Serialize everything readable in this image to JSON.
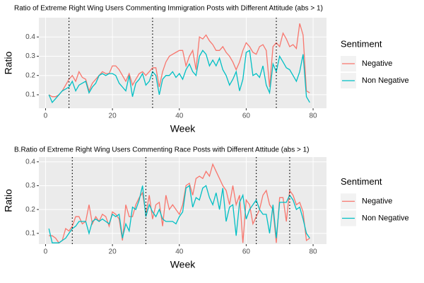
{
  "chart_data": [
    {
      "type": "line",
      "title": "Ratio of Extreme Right Wing Users Commenting Immigration Posts with Different Attitude  (abs > 1)",
      "x_label": "Week",
      "y_label": "Ratio",
      "legend_title": "Sentiment",
      "legend_position": "right",
      "grid": true,
      "xlim": [
        -2,
        84
      ],
      "xticks": [
        0,
        20,
        40,
        60,
        80
      ],
      "ylim": [
        0.03,
        0.5
      ],
      "yticks": [
        0.1,
        0.2,
        0.3,
        0.4
      ],
      "vlines": [
        7,
        32,
        69
      ],
      "x": [
        1,
        2,
        3,
        4,
        5,
        6,
        7,
        8,
        9,
        10,
        11,
        12,
        13,
        14,
        15,
        16,
        17,
        18,
        19,
        20,
        21,
        22,
        23,
        24,
        25,
        26,
        27,
        28,
        29,
        30,
        31,
        32,
        33,
        34,
        35,
        36,
        37,
        38,
        39,
        40,
        41,
        42,
        43,
        44,
        45,
        46,
        47,
        48,
        49,
        50,
        51,
        52,
        53,
        54,
        55,
        56,
        57,
        58,
        59,
        60,
        61,
        62,
        63,
        64,
        65,
        66,
        67,
        68,
        69,
        70,
        71,
        72,
        73,
        74,
        75,
        76,
        77,
        78,
        79
      ],
      "series": [
        {
          "name": "Negative",
          "color": "#F8766D",
          "values": [
            0.1,
            0.09,
            0.09,
            0.1,
            0.12,
            0.15,
            0.18,
            0.2,
            0.17,
            0.22,
            0.19,
            0.18,
            0.12,
            0.16,
            0.18,
            0.2,
            0.22,
            0.21,
            0.21,
            0.25,
            0.25,
            0.23,
            0.2,
            0.17,
            0.21,
            0.15,
            0.18,
            0.21,
            0.22,
            0.2,
            0.22,
            0.24,
            0.24,
            0.14,
            0.22,
            0.27,
            0.3,
            0.31,
            0.32,
            0.33,
            0.33,
            0.25,
            0.3,
            0.33,
            0.23,
            0.4,
            0.39,
            0.41,
            0.38,
            0.36,
            0.33,
            0.33,
            0.35,
            0.32,
            0.3,
            0.27,
            0.23,
            0.27,
            0.33,
            0.37,
            0.35,
            0.32,
            0.31,
            0.35,
            0.36,
            0.33,
            0.14,
            0.35,
            0.37,
            0.35,
            0.42,
            0.39,
            0.35,
            0.36,
            0.34,
            0.47,
            0.41,
            0.12,
            0.11
          ]
        },
        {
          "name": "Non Negative",
          "color": "#00BFC4",
          "values": [
            0.1,
            0.06,
            0.08,
            0.1,
            0.12,
            0.13,
            0.14,
            0.17,
            0.12,
            0.15,
            0.16,
            0.17,
            0.11,
            0.14,
            0.16,
            0.2,
            0.21,
            0.2,
            0.21,
            0.21,
            0.2,
            0.16,
            0.14,
            0.12,
            0.2,
            0.09,
            0.16,
            0.18,
            0.21,
            0.15,
            0.17,
            0.22,
            0.2,
            0.1,
            0.18,
            0.2,
            0.2,
            0.22,
            0.19,
            0.21,
            0.18,
            0.23,
            0.26,
            0.22,
            0.2,
            0.3,
            0.33,
            0.31,
            0.25,
            0.28,
            0.25,
            0.29,
            0.23,
            0.2,
            0.15,
            0.18,
            0.22,
            0.12,
            0.18,
            0.32,
            0.33,
            0.2,
            0.21,
            0.19,
            0.25,
            0.15,
            0.11,
            0.26,
            0.22,
            0.3,
            0.27,
            0.24,
            0.23,
            0.2,
            0.17,
            0.22,
            0.31,
            0.09,
            0.06
          ]
        }
      ]
    },
    {
      "type": "line",
      "title": "B.Ratio of Extreme Right Wing Users Commenting Race Posts with Different Attitude (abs > 1)",
      "x_label": "Week",
      "y_label": "Ratio",
      "legend_title": "Sentiment",
      "legend_position": "right",
      "grid": true,
      "xlim": [
        -2,
        84
      ],
      "xticks": [
        0,
        20,
        40,
        60,
        80
      ],
      "ylim": [
        0.055,
        0.42
      ],
      "yticks": [
        0.1,
        0.2,
        0.3,
        0.4
      ],
      "vlines": [
        8,
        30,
        63,
        73
      ],
      "x": [
        1,
        2,
        3,
        4,
        5,
        6,
        7,
        8,
        9,
        10,
        11,
        12,
        13,
        14,
        15,
        16,
        17,
        18,
        19,
        20,
        21,
        22,
        23,
        24,
        25,
        26,
        27,
        28,
        29,
        30,
        31,
        32,
        33,
        34,
        35,
        36,
        37,
        38,
        39,
        40,
        41,
        42,
        43,
        44,
        45,
        46,
        47,
        48,
        49,
        50,
        51,
        52,
        53,
        54,
        55,
        56,
        57,
        58,
        59,
        60,
        61,
        62,
        63,
        64,
        65,
        66,
        67,
        68,
        69,
        70,
        71,
        72,
        73,
        74,
        75,
        76,
        77,
        78,
        79
      ],
      "series": [
        {
          "name": "Negative",
          "color": "#F8766D",
          "values": [
            0.09,
            0.09,
            0.08,
            0.06,
            0.07,
            0.12,
            0.11,
            0.13,
            0.17,
            0.17,
            0.14,
            0.15,
            0.22,
            0.14,
            0.17,
            0.15,
            0.18,
            0.17,
            0.13,
            0.19,
            0.18,
            0.16,
            0.07,
            0.22,
            0.17,
            0.17,
            0.22,
            0.25,
            0.27,
            0.18,
            0.26,
            0.16,
            0.22,
            0.23,
            0.13,
            0.26,
            0.2,
            0.22,
            0.2,
            0.18,
            0.22,
            0.3,
            0.31,
            0.26,
            0.33,
            0.34,
            0.33,
            0.36,
            0.34,
            0.39,
            0.36,
            0.33,
            0.3,
            0.28,
            0.22,
            0.3,
            0.22,
            0.26,
            0.06,
            0.24,
            0.22,
            0.14,
            0.17,
            0.2,
            0.26,
            0.28,
            0.22,
            0.2,
            0.06,
            0.25,
            0.25,
            0.15,
            0.28,
            0.26,
            0.22,
            0.23,
            0.19,
            0.07,
            0.08
          ]
        },
        {
          "name": "Non Negative",
          "color": "#00BFC4",
          "values": [
            0.12,
            0.06,
            0.06,
            0.06,
            0.07,
            0.08,
            0.1,
            0.12,
            0.13,
            0.15,
            0.15,
            0.15,
            0.1,
            0.15,
            0.16,
            0.15,
            0.16,
            0.15,
            0.14,
            0.18,
            0.17,
            0.18,
            0.08,
            0.14,
            0.11,
            0.21,
            0.2,
            0.24,
            0.3,
            0.17,
            0.22,
            0.19,
            0.17,
            0.2,
            0.16,
            0.15,
            0.15,
            0.15,
            0.14,
            0.17,
            0.19,
            0.29,
            0.3,
            0.21,
            0.25,
            0.24,
            0.29,
            0.3,
            0.25,
            0.22,
            0.27,
            0.2,
            0.29,
            0.15,
            0.21,
            0.22,
            0.09,
            0.23,
            0.26,
            0.16,
            0.2,
            0.22,
            0.24,
            0.2,
            0.18,
            0.18,
            0.1,
            0.22,
            0.08,
            0.23,
            0.23,
            0.23,
            0.26,
            0.24,
            0.2,
            0.21,
            0.16,
            0.1,
            0.08
          ]
        }
      ]
    }
  ]
}
